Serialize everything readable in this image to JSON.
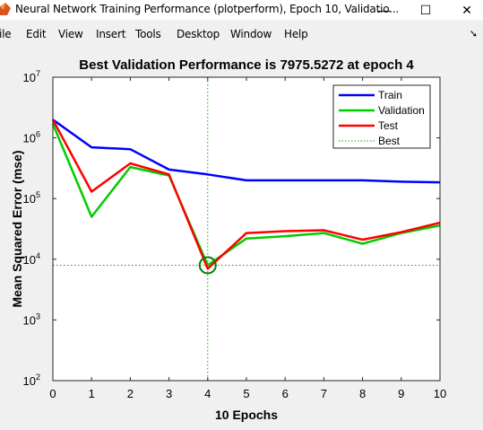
{
  "window": {
    "title": "Neural Network Training Performance (plotperform), Epoch 10, Validatio...",
    "minimize_glyph": "—",
    "maximize_glyph": "☐",
    "close_glyph": "✕"
  },
  "menubar": {
    "items": [
      "ile",
      "Edit",
      "View",
      "Insert",
      "Tools",
      "Desktop",
      "Window",
      "Help"
    ],
    "overflow_arrow": "➘"
  },
  "colors": {
    "train": "#0000ff",
    "validation": "#00cc00",
    "test": "#ff0000",
    "best": "#00aa00"
  },
  "chart_data": {
    "type": "line",
    "title": "Best Validation Performance is 7975.5272 at epoch 4",
    "xlabel": "10 Epochs",
    "ylabel": "Mean Squared Error  (mse)",
    "yscale": "log",
    "xlim": [
      0,
      10
    ],
    "ylim": [
      100,
      10000000
    ],
    "xticks": [
      "0",
      "1",
      "2",
      "3",
      "4",
      "5",
      "6",
      "7",
      "8",
      "9",
      "10"
    ],
    "yticks": [
      {
        "base": "10",
        "exp": "2",
        "value": 100
      },
      {
        "base": "10",
        "exp": "3",
        "value": 1000
      },
      {
        "base": "10",
        "exp": "4",
        "value": 10000
      },
      {
        "base": "10",
        "exp": "5",
        "value": 100000
      },
      {
        "base": "10",
        "exp": "6",
        "value": 1000000
      },
      {
        "base": "10",
        "exp": "7",
        "value": 10000000
      }
    ],
    "grid": false,
    "legend_position": "top-right",
    "x": [
      0,
      1,
      2,
      3,
      4,
      5,
      6,
      7,
      8,
      9,
      10
    ],
    "series": [
      {
        "name": "Train",
        "color": "#0000ff",
        "values": [
          2000000,
          700000,
          650000,
          300000,
          250000,
          200000,
          200000,
          200000,
          200000,
          190000,
          185000
        ]
      },
      {
        "name": "Validation",
        "color": "#00cc00",
        "values": [
          1700000,
          50000,
          330000,
          240000,
          7975.5272,
          22000,
          24000,
          27000,
          18000,
          27000,
          36000
        ]
      },
      {
        "name": "Test",
        "color": "#ff0000",
        "values": [
          2000000,
          130000,
          380000,
          250000,
          7000,
          27000,
          29000,
          30000,
          21000,
          28000,
          40000
        ]
      }
    ],
    "best": {
      "name": "Best",
      "epoch": 4,
      "value": 7975.5272
    }
  }
}
